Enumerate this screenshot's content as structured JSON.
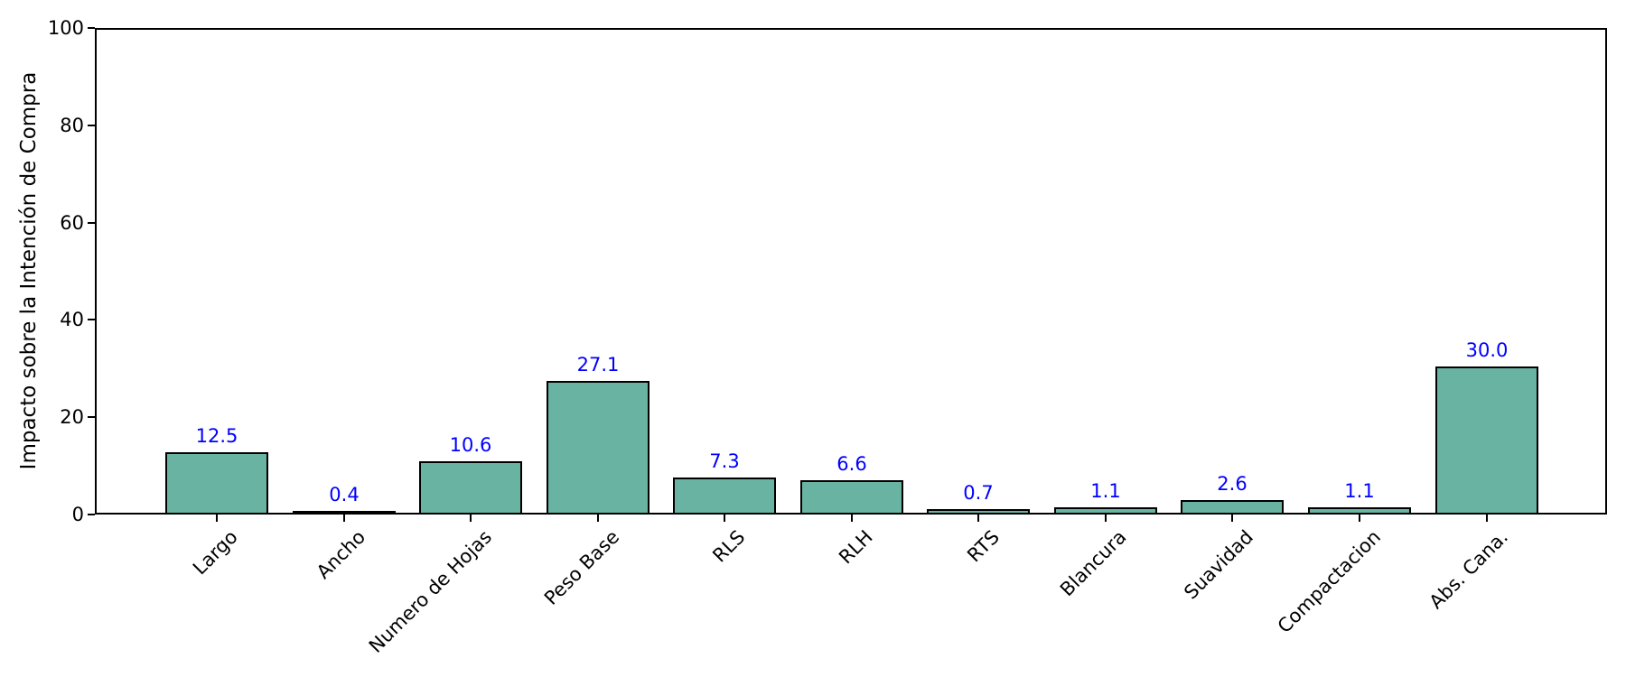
{
  "chart_data": {
    "type": "bar",
    "categories": [
      "Largo",
      "Ancho",
      "Numero de Hojas",
      "Peso Base",
      "RLS",
      "RLH",
      "RTS",
      "Blancura",
      "Suavidad",
      "Compactacion",
      "Abs. Cana."
    ],
    "values": [
      12.5,
      0.4,
      10.6,
      27.1,
      7.3,
      6.6,
      0.7,
      1.1,
      2.6,
      1.1,
      30.0
    ],
    "value_labels": [
      "12.5",
      "0.4",
      "10.6",
      "27.1",
      "7.3",
      "6.6",
      "0.7",
      "1.1",
      "2.6",
      "1.1",
      "30.0"
    ],
    "title": "",
    "xlabel": "",
    "ylabel": "Impacto sobre la Intención de Compra",
    "ylim": [
      0,
      100
    ],
    "yticks": [
      0,
      20,
      40,
      60,
      80,
      100
    ],
    "xtick_rotation": 45,
    "grid": false,
    "legend": null,
    "colors": {
      "bar_fill": "#69b3a2",
      "bar_edge": "#000000",
      "value_label": "#0000ff",
      "axis": "#000000",
      "background": "#ffffff"
    }
  }
}
